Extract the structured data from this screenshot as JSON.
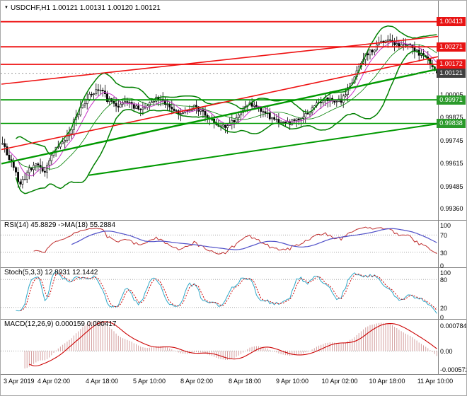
{
  "window": {
    "title": "USDCHF,H1 1.00121 1.00131 1.00120 1.00121"
  },
  "colors": {
    "background": "#ffffff",
    "divider": "#7f7f7f",
    "candle_up_fill": "#ffffff",
    "candle_down_fill": "#000000",
    "candle_outline": "#000000",
    "bollinger": "#008000",
    "ma_fast": "#c832c8",
    "trend_red": "#ee1111",
    "trend_green": "#009900",
    "level_red": "#ee1111",
    "level_green": "#009900",
    "badge_red": "#e81414",
    "badge_green": "#2a9a2a",
    "badge_current": "#404040",
    "grid_dotted": "#999999",
    "current_price_line": "#888888",
    "rsi_line": "#c03030",
    "rsi_ma": "#5050c8",
    "stoch_k": "#2fa8c8",
    "stoch_d": "#cc0000",
    "macd_hist": "#d4a0a0",
    "macd_signal": "#cc0000"
  },
  "chart_data": {
    "type": "candlestick",
    "symbol": "USDCHF",
    "timeframe": "H1",
    "quote": {
      "open": "1.00121",
      "high": "1.00131",
      "low": "1.00120",
      "close": "1.00121"
    },
    "price_min": 0.993,
    "price_max": 1.005,
    "y_ticks": [
      1.00005,
      0.99875,
      0.99745,
      0.99615,
      0.99485,
      0.9936
    ],
    "x_labels": [
      "3 Apr 2019",
      "4 Apr 02:00",
      "4 Apr 18:00",
      "5 Apr 10:00",
      "8 Apr 02:00",
      "8 Apr 18:00",
      "9 Apr 10:00",
      "10 Apr 02:00",
      "10 Apr 18:00",
      "11 Apr 10:00"
    ],
    "levels": {
      "resistance": [
        {
          "label": "1.00413",
          "price": 1.00413
        },
        {
          "label": "1.00271",
          "price": 1.00271
        },
        {
          "label": "1.00172",
          "price": 1.00172
        }
      ],
      "support": [
        {
          "label": "0.99971",
          "price": 0.99971
        },
        {
          "label": "0.99838",
          "price": 0.99838
        }
      ],
      "current": {
        "label": "1.00121",
        "price": 1.00121
      }
    },
    "trendlines": [
      {
        "color": "red",
        "from_t": 0,
        "from_p": 1.0006,
        "to_t": 1,
        "to_p": 1.0033,
        "width": 1.6
      },
      {
        "color": "red",
        "from_t": 0,
        "from_p": 0.9969,
        "to_t": 1,
        "to_p": 1.00215,
        "width": 1.6
      },
      {
        "color": "green",
        "from_t": 0,
        "from_p": 0.9961,
        "to_t": 1,
        "to_p": 1.00145,
        "width": 2.4
      },
      {
        "color": "green",
        "from_t": 0.2,
        "from_p": 0.99545,
        "to_t": 1,
        "to_p": 0.99836,
        "width": 2
      }
    ],
    "bollinger": {
      "period": 20,
      "deviation": 2
    },
    "ma_fast_period": 8,
    "candles": {
      "count": 196,
      "price_path": [
        [
          0,
          0.9972
        ],
        [
          0.04,
          0.995
        ],
        [
          0.073,
          0.9961
        ],
        [
          0.097,
          0.9957
        ],
        [
          0.12,
          0.9968
        ],
        [
          0.154,
          0.9979
        ],
        [
          0.178,
          0.9992
        ],
        [
          0.203,
          1.0
        ],
        [
          0.22,
          1.0004
        ],
        [
          0.243,
          0.9997
        ],
        [
          0.267,
          0.9993
        ],
        [
          0.29,
          0.99965
        ],
        [
          0.315,
          0.9991
        ],
        [
          0.35,
          0.9998
        ],
        [
          0.38,
          0.9994
        ],
        [
          0.41,
          0.9989
        ],
        [
          0.44,
          0.9993
        ],
        [
          0.47,
          0.9988
        ],
        [
          0.5,
          0.9981
        ],
        [
          0.527,
          0.9984
        ],
        [
          0.567,
          0.9995
        ],
        [
          0.6,
          0.999
        ],
        [
          0.64,
          0.9983
        ],
        [
          0.672,
          0.9985
        ],
        [
          0.705,
          0.9991
        ],
        [
          0.745,
          0.99975
        ],
        [
          0.78,
          0.9997
        ],
        [
          0.8,
          1.0005
        ],
        [
          0.82,
          1.0015
        ],
        [
          0.835,
          1.0022
        ],
        [
          0.86,
          1.0027
        ],
        [
          0.885,
          1.0031
        ],
        [
          0.91,
          1.0028
        ],
        [
          0.93,
          1.00285
        ],
        [
          0.955,
          1.0024
        ],
        [
          0.98,
          1.0019
        ],
        [
          1,
          1.00121
        ]
      ]
    },
    "indicators": [
      {
        "name": "RSI",
        "label": "RSI(14) 45.8829 ->MA(18) 55.2884",
        "period": 14,
        "ma_period": 18,
        "ticks": [
          {
            "label": "100",
            "value": 100
          },
          {
            "label": "70",
            "value": 70
          },
          {
            "label": "30",
            "value": 30
          },
          {
            "label": "0",
            "value": 0
          }
        ],
        "guides": [
          70,
          30
        ]
      },
      {
        "name": "Stochastic",
        "label": "Stoch(5,3,3) 12.8931 12.1442",
        "k": 5,
        "d": 3,
        "slowing": 3,
        "ticks": [
          {
            "label": "100",
            "value": 100
          },
          {
            "label": "80",
            "value": 80
          },
          {
            "label": "20",
            "value": 20
          },
          {
            "label": "0",
            "value": 0
          }
        ],
        "guides": [
          80,
          20
        ]
      },
      {
        "name": "MACD",
        "label": "MACD(12,26,9) 0.000159 0.000417",
        "fast": 12,
        "slow": 26,
        "signal": 9,
        "ticks": [
          {
            "label": "0.000784",
            "value": 0.000784
          },
          {
            "label": "0.00",
            "value": 0
          },
          {
            "label": "-0.000572",
            "value": -0.000572
          }
        ],
        "range": [
          -0.00065,
          0.00088
        ]
      }
    ]
  }
}
